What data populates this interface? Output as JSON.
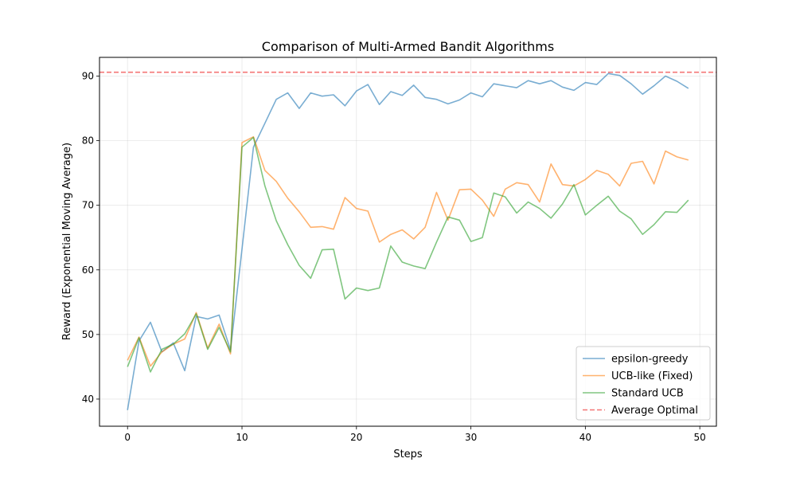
{
  "chart_data": {
    "type": "line",
    "title": "Comparison of Multi-Armed Bandit Algorithms",
    "xlabel": "Steps",
    "ylabel": "Reward (Exponential Moving Average)",
    "xlim": [
      -2.45,
      51.45
    ],
    "ylim": [
      35.8,
      92.9
    ],
    "xticks": [
      0,
      10,
      20,
      30,
      40,
      50
    ],
    "yticks": [
      40,
      50,
      60,
      70,
      80,
      90
    ],
    "grid": true,
    "legend_position": "lower-right",
    "x": [
      0,
      1,
      2,
      3,
      4,
      5,
      6,
      7,
      8,
      9,
      10,
      11,
      12,
      13,
      14,
      15,
      16,
      17,
      18,
      19,
      20,
      21,
      22,
      23,
      24,
      25,
      26,
      27,
      28,
      29,
      30,
      31,
      32,
      33,
      34,
      35,
      36,
      37,
      38,
      39,
      40,
      41,
      42,
      43,
      44,
      45,
      46,
      47,
      48,
      49
    ],
    "series": [
      {
        "name": "epsilon-greedy",
        "color": "#1f77b4",
        "values": [
          38.3,
          49.0,
          51.9,
          47.3,
          48.7,
          44.4,
          52.8,
          52.4,
          53.0,
          47.6,
          63.2,
          79.0,
          82.7,
          86.4,
          87.4,
          85.0,
          87.4,
          86.9,
          87.1,
          85.4,
          87.7,
          88.7,
          85.6,
          87.6,
          87.0,
          88.6,
          86.7,
          86.4,
          85.7,
          86.3,
          87.4,
          86.8,
          88.8,
          88.5,
          88.2,
          89.3,
          88.8,
          89.3,
          88.3,
          87.8,
          89.0,
          88.7,
          90.4,
          90.1,
          88.8,
          87.2,
          88.5,
          90.0,
          89.2,
          88.1
        ]
      },
      {
        "name": "UCB-like (Fixed)",
        "color": "#ff7f0e",
        "values": [
          46.0,
          49.6,
          45.1,
          47.3,
          48.5,
          49.3,
          53.4,
          47.9,
          51.6,
          47.0,
          79.7,
          80.6,
          75.4,
          73.7,
          71.1,
          69.0,
          66.6,
          66.7,
          66.3,
          71.2,
          69.5,
          69.1,
          64.3,
          65.5,
          66.2,
          64.8,
          66.6,
          72.0,
          67.7,
          72.4,
          72.5,
          70.8,
          68.3,
          72.5,
          73.5,
          73.2,
          70.5,
          76.4,
          73.2,
          73.0,
          74.0,
          75.4,
          74.8,
          73.0,
          76.5,
          76.8,
          73.3,
          78.4,
          77.5,
          77.0
        ]
      },
      {
        "name": "Standard UCB",
        "color": "#2ca02c",
        "values": [
          45.0,
          49.5,
          44.2,
          47.7,
          48.5,
          50.1,
          53.2,
          47.7,
          51.1,
          47.3,
          79.0,
          80.5,
          73.0,
          67.6,
          63.9,
          60.7,
          58.7,
          63.1,
          63.2,
          55.5,
          57.2,
          56.8,
          57.2,
          63.7,
          61.2,
          60.6,
          60.2,
          64.3,
          68.2,
          67.7,
          64.4,
          65.0,
          71.9,
          71.3,
          68.8,
          70.5,
          69.5,
          68.0,
          70.2,
          73.2,
          68.5,
          70.0,
          71.4,
          69.1,
          67.9,
          65.5,
          67.0,
          69.0,
          68.9,
          70.8
        ]
      }
    ],
    "reference_line": {
      "name": "Average Optimal",
      "y": 90.6,
      "color": "#f03c3c",
      "style": "dashed"
    }
  }
}
